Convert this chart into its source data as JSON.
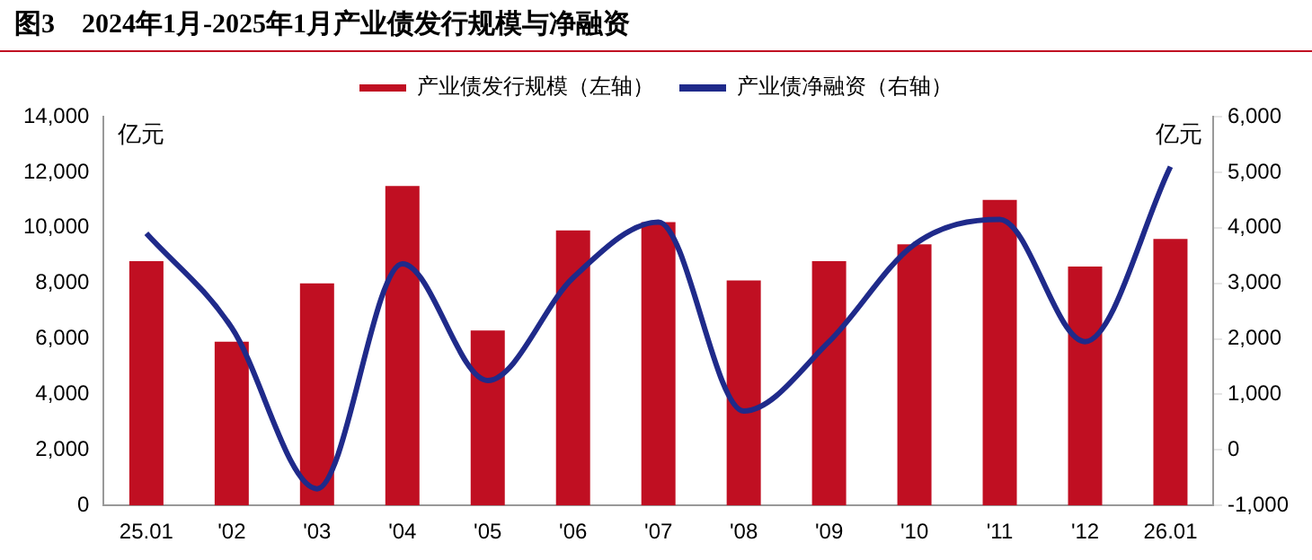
{
  "chart_data": {
    "type": "bar",
    "title": "图3　2024年1月-2025年1月产业债发行规模与净融资",
    "ylabel": "亿元",
    "y2label": "亿元",
    "categories": [
      "25.01",
      "'02",
      "'03",
      "'04",
      "'05",
      "'06",
      "'07",
      "'08",
      "'09",
      "'10",
      "'11",
      "'12",
      "26.01"
    ],
    "series": [
      {
        "name": "产业债发行规模（左轴）",
        "color": "#c00f22",
        "values": [
          8800,
          5900,
          8000,
          11500,
          6300,
          9900,
          10200,
          8100,
          8800,
          9400,
          11000,
          8600,
          9600
        ]
      },
      {
        "name": "产业债净融资（右轴）",
        "type": "line",
        "axis": "y2",
        "color": "#1f2a8a",
        "values": [
          3900,
          2200,
          -700,
          3350,
          1250,
          3100,
          4100,
          700,
          1950,
          3700,
          4150,
          1950,
          5100
        ]
      }
    ],
    "ylim": [
      0,
      14000
    ],
    "yticks": [
      0,
      {
        "value": 2000,
        "label": "2,000"
      },
      {
        "value": 4000,
        "label": "4,000"
      },
      {
        "value": 6000,
        "label": "6,000"
      },
      {
        "value": 8000,
        "label": "8,000"
      },
      {
        "value": 10000,
        "label": "10,000"
      },
      {
        "value": 12000,
        "label": "12,000"
      },
      {
        "value": 14000,
        "label": "14,000"
      }
    ],
    "y2lim": [
      -1000,
      6000
    ],
    "y2ticks": [
      {
        "value": -1000,
        "label": "-1,000"
      },
      0,
      {
        "value": 1000,
        "label": "1,000"
      },
      {
        "value": 2000,
        "label": "2,000"
      },
      {
        "value": 3000,
        "label": "3,000"
      },
      {
        "value": 4000,
        "label": "4,000"
      },
      {
        "value": 5000,
        "label": "5,000"
      },
      {
        "value": 6000,
        "label": "6,000"
      }
    ],
    "grid": false,
    "legend": "top",
    "marker": "none",
    "line_style": "solid"
  }
}
